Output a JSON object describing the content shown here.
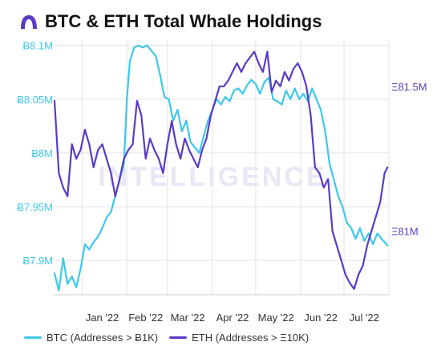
{
  "header": {
    "title": "BTC & ETH Total Whale Holdings",
    "logo_icon": "intotheblock-logo-icon"
  },
  "watermark": "INTELLIGENCE",
  "colors": {
    "btc": "#3cc8ea",
    "eth": "#5a3bc4",
    "grid": "#e3e3e3"
  },
  "chart_data": {
    "type": "line",
    "title": "BTC & ETH Total Whale Holdings",
    "x_ticks": [
      "Jan '22",
      "Feb '22",
      "Mar '22",
      "Apr '22",
      "May '22",
      "Jun '22",
      "Jul '22"
    ],
    "x_range": [
      "2021-12-13",
      "2022-08-01"
    ],
    "y_left": {
      "ticks": [
        7.9,
        7.95,
        8.0,
        8.05,
        8.1
      ],
      "tick_labels": [
        "Ƀ7.9M",
        "Ƀ7.95M",
        "Ƀ8M",
        "Ƀ8.05M",
        "Ƀ8.1M"
      ],
      "range": [
        7.868,
        8.105
      ],
      "unit": "M BTC"
    },
    "y_right": {
      "ticks": [
        81.0,
        81.5
      ],
      "tick_labels": [
        "Ξ81M",
        "Ξ81.5M"
      ],
      "range": [
        80.78,
        81.66
      ],
      "unit": "M ETH"
    },
    "grid": true,
    "legend_position": "bottom-left",
    "series": [
      {
        "name": "BTC (Addresses > Ƀ1K)",
        "axis": "left",
        "x": [
          "2021-12-13",
          "2021-12-16",
          "2021-12-19",
          "2021-12-22",
          "2021-12-25",
          "2021-12-28",
          "2021-12-31",
          "2022-01-03",
          "2022-01-06",
          "2022-01-09",
          "2022-01-12",
          "2022-01-15",
          "2022-01-18",
          "2022-01-21",
          "2022-01-24",
          "2022-01-27",
          "2022-01-30",
          "2022-02-01",
          "2022-02-03",
          "2022-02-06",
          "2022-02-09",
          "2022-02-12",
          "2022-02-15",
          "2022-02-18",
          "2022-02-21",
          "2022-02-24",
          "2022-02-27",
          "2022-03-02",
          "2022-03-05",
          "2022-03-08",
          "2022-03-11",
          "2022-03-14",
          "2022-03-17",
          "2022-03-20",
          "2022-03-23",
          "2022-03-26",
          "2022-03-29",
          "2022-04-01",
          "2022-04-04",
          "2022-04-07",
          "2022-04-10",
          "2022-04-13",
          "2022-04-16",
          "2022-04-19",
          "2022-04-22",
          "2022-04-25",
          "2022-04-28",
          "2022-05-01",
          "2022-05-04",
          "2022-05-07",
          "2022-05-10",
          "2022-05-13",
          "2022-05-16",
          "2022-05-19",
          "2022-05-22",
          "2022-05-25",
          "2022-05-28",
          "2022-05-31",
          "2022-06-03",
          "2022-06-06",
          "2022-06-09",
          "2022-06-12",
          "2022-06-15",
          "2022-06-18",
          "2022-06-21",
          "2022-06-24",
          "2022-06-27",
          "2022-06-30",
          "2022-07-03",
          "2022-07-06",
          "2022-07-09",
          "2022-07-12",
          "2022-07-15",
          "2022-07-18",
          "2022-07-21",
          "2022-07-24",
          "2022-07-27",
          "2022-07-31"
        ],
        "values": [
          7.888,
          7.872,
          7.902,
          7.878,
          7.885,
          7.875,
          7.892,
          7.915,
          7.91,
          7.917,
          7.922,
          7.93,
          7.94,
          7.945,
          7.96,
          7.975,
          7.99,
          8.05,
          8.085,
          8.098,
          8.1,
          8.098,
          8.1,
          8.095,
          8.09,
          8.072,
          8.052,
          8.05,
          8.03,
          8.04,
          8.02,
          8.03,
          8.01,
          8.005,
          8.0,
          8.015,
          8.03,
          8.04,
          8.05,
          8.045,
          8.052,
          8.048,
          8.058,
          8.06,
          8.055,
          8.063,
          8.068,
          8.064,
          8.055,
          8.066,
          8.07,
          8.05,
          8.048,
          8.045,
          8.058,
          8.05,
          8.06,
          8.05,
          8.055,
          8.048,
          8.06,
          8.05,
          8.04,
          8.02,
          7.99,
          7.975,
          7.96,
          7.95,
          7.935,
          7.93,
          7.92,
          7.93,
          7.918,
          7.925,
          7.915,
          7.925,
          7.92,
          7.914
        ]
      },
      {
        "name": "ETH (Addresses > Ξ10K)",
        "axis": "right",
        "x": [
          "2021-12-13",
          "2021-12-16",
          "2021-12-19",
          "2021-12-22",
          "2021-12-25",
          "2021-12-28",
          "2021-12-31",
          "2022-01-03",
          "2022-01-06",
          "2022-01-09",
          "2022-01-12",
          "2022-01-15",
          "2022-01-18",
          "2022-01-21",
          "2022-01-24",
          "2022-01-27",
          "2022-01-30",
          "2022-02-02",
          "2022-02-05",
          "2022-02-08",
          "2022-02-11",
          "2022-02-14",
          "2022-02-17",
          "2022-02-20",
          "2022-02-23",
          "2022-02-26",
          "2022-03-01",
          "2022-03-04",
          "2022-03-07",
          "2022-03-10",
          "2022-03-13",
          "2022-03-16",
          "2022-03-19",
          "2022-03-22",
          "2022-03-25",
          "2022-03-28",
          "2022-03-31",
          "2022-04-03",
          "2022-04-06",
          "2022-04-09",
          "2022-04-12",
          "2022-04-15",
          "2022-04-18",
          "2022-04-21",
          "2022-04-24",
          "2022-04-27",
          "2022-04-30",
          "2022-05-03",
          "2022-05-06",
          "2022-05-09",
          "2022-05-12",
          "2022-05-15",
          "2022-05-18",
          "2022-05-21",
          "2022-05-24",
          "2022-05-27",
          "2022-05-30",
          "2022-06-02",
          "2022-06-05",
          "2022-06-08",
          "2022-06-11",
          "2022-06-14",
          "2022-06-17",
          "2022-06-20",
          "2022-06-23",
          "2022-06-26",
          "2022-06-29",
          "2022-07-02",
          "2022-07-05",
          "2022-07-08",
          "2022-07-11",
          "2022-07-14",
          "2022-07-17",
          "2022-07-20",
          "2022-07-23",
          "2022-07-26",
          "2022-07-29",
          "2022-07-31"
        ],
        "values": [
          81.45,
          81.2,
          81.15,
          81.12,
          81.3,
          81.25,
          81.28,
          81.35,
          81.3,
          81.22,
          81.28,
          81.3,
          81.25,
          81.2,
          81.12,
          81.18,
          81.25,
          81.28,
          81.3,
          81.45,
          81.4,
          81.25,
          81.32,
          81.28,
          81.25,
          81.2,
          81.3,
          81.38,
          81.3,
          81.25,
          81.32,
          81.28,
          81.25,
          81.22,
          81.28,
          81.32,
          81.4,
          81.45,
          81.5,
          81.5,
          81.52,
          81.55,
          81.58,
          81.55,
          81.58,
          81.6,
          81.62,
          81.58,
          81.55,
          81.62,
          81.48,
          81.52,
          81.5,
          81.55,
          81.52,
          81.56,
          81.58,
          81.55,
          81.5,
          81.4,
          81.22,
          81.2,
          81.15,
          81.18,
          81.0,
          80.95,
          80.9,
          80.85,
          80.82,
          80.8,
          80.85,
          80.88,
          80.95,
          81.0,
          81.05,
          81.1,
          81.2,
          81.22
        ]
      }
    ]
  }
}
